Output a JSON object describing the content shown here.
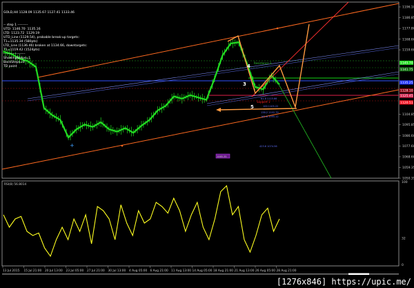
{
  "chart": {
    "symbol_line": "GOLD,H4 1128.09 1135.67 1127.41 1133.46",
    "info_lines": [
      "-- step 1 ---------",
      "UTD: 1146.70  1135.16",
      "LTD: 1123.72  1129.19",
      "UTD_Line (1129.54), probable break-up targets:",
      "T1=1135.34 (580pts)",
      "LTD_Line (1136.46) broken at 1134.66, downtargets:",
      "T1=1119.42 (1524pts)",
      "-------------------",
      "ShowingSteps=1",
      "BackSteps=0",
      "TD point"
    ],
    "price_axis": [
      "1196.10",
      "1186.85",
      "1177.80",
      "1168.60",
      "1159.60",
      "1104.85",
      "1095.85",
      "1086.60",
      "1077.60",
      "1068.60",
      "1059.35",
      "1050.35"
    ],
    "price_axis_values": [
      1196.1,
      1186.85,
      1177.8,
      1168.6,
      1159.6,
      1104.85,
      1095.85,
      1086.6,
      1077.6,
      1068.6,
      1059.35,
      1050.35
    ],
    "price_tags": [
      {
        "text": "1145.70",
        "color": "#22dd22",
        "price": 1148.6
      },
      {
        "text": "1141.75",
        "color": "#0a6a0a",
        "price": 1143.0
      },
      {
        "text": "1135.25",
        "color": "#1e32ff",
        "price": 1131.8
      },
      {
        "text": "1128.10",
        "color": "#8a0010",
        "price": 1125.0
      },
      {
        "text": "1125.45",
        "color": "#d0204a",
        "price": 1120.5
      },
      {
        "text": "1120.51",
        "color": "#ff1020",
        "price": 1114.8
      }
    ],
    "annotations": {
      "resistance": "Resistance 3",
      "support": "Support 1",
      "wave3": "3",
      "wave4": "4",
      "wave5": "5",
      "fib": [
        "61.8 1115.66",
        "100 1105.22",
        "138.2 1102.79",
        "161.8 1095.12",
        "423.6 1074.56"
      ],
      "box_label": "1065.35"
    },
    "price_range": [
      1050.35,
      1196.1
    ],
    "price_series": [
      1158,
      1156,
      1152,
      1150,
      1145,
      1110,
      1104,
      1100,
      1085,
      1092,
      1096,
      1094,
      1098,
      1092,
      1090,
      1093,
      1089,
      1095,
      1100,
      1108,
      1112,
      1120,
      1118,
      1121,
      1119,
      1117,
      1135,
      1155,
      1165,
      1166,
      1148,
      1128,
      1126,
      1138,
      1130
    ],
    "colors": {
      "candles": "#22dd22",
      "channel": "#ff6a20",
      "rsi": "#ffff20",
      "blue": "#4060ff",
      "red": "#ff2020",
      "green": "#20c020"
    }
  },
  "rsi": {
    "label": "RSI(8) 56.8014",
    "axis": [
      "100",
      "32",
      "0"
    ],
    "axis_values": [
      100,
      32,
      0
    ],
    "values": [
      60,
      45,
      55,
      58,
      40,
      35,
      38,
      20,
      10,
      30,
      45,
      30,
      55,
      40,
      60,
      25,
      70,
      65,
      55,
      30,
      72,
      50,
      35,
      65,
      50,
      55,
      75,
      70,
      62,
      80,
      65,
      40,
      60,
      75,
      45,
      30,
      55,
      88,
      95,
      60,
      70,
      30,
      15,
      35,
      60,
      68,
      40,
      55
    ]
  },
  "time_axis": [
    "13 Jul 2015",
    "15 Jul 21:00",
    "20 Jul 13:00",
    "23 Jul 05:00",
    "27 Jul 21:00",
    "30 Jul 13:00",
    "4 Aug 05:00",
    "6 Aug 21:00",
    "11 Aug 13:00",
    "14 Aug 05:00",
    "18 Aug 21:00",
    "21 Aug 13:00",
    "26 Aug 05:00",
    "28 Aug 21:00"
  ],
  "watermark": "[1276x846] https://upic.me/"
}
